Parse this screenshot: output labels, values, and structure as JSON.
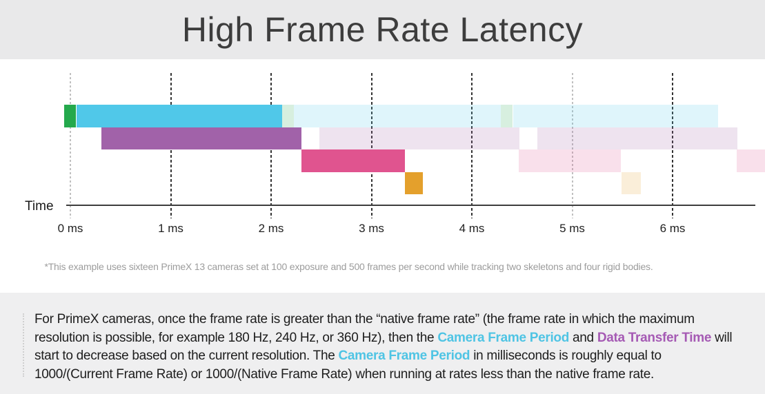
{
  "header": {
    "title": "High Frame Rate Latency",
    "bg": "#e9e9ea"
  },
  "chart": {
    "time_label": "Time",
    "footnote": "*This example uses sixteen PrimeX 13 cameras set at 100 exposure and 500 frames per second while tracking two skeletons and four rigid bodies."
  },
  "chart_data": {
    "type": "bar",
    "subtype": "gantt-latency-timeline",
    "title": "High Frame Rate Latency",
    "xlabel": "Time",
    "x_unit": "ms",
    "xlim": [
      -0.1,
      6.92
    ],
    "grid": true,
    "x_ticks": [
      {
        "value": 0,
        "label": "0 ms",
        "light": true
      },
      {
        "value": 1,
        "label": "1 ms",
        "light": false
      },
      {
        "value": 2,
        "label": "2 ms",
        "light": false
      },
      {
        "value": 3,
        "label": "3 ms",
        "light": false
      },
      {
        "value": 4,
        "label": "4 ms",
        "light": false
      },
      {
        "value": 5,
        "label": "5 ms",
        "light": true
      },
      {
        "value": 6,
        "label": "6 ms",
        "light": false
      }
    ],
    "colors": {
      "green": "#24a94c",
      "cyan": "#50c8e9",
      "purple": "#a162a9",
      "pink": "#e0548f",
      "orange": "#e4a02c",
      "gridline_dark": "#333333",
      "gridline_light": "#c0c0c0",
      "axis": "#3d3d3d",
      "accent_text_cyan": "#4fc4e4",
      "accent_text_purple": "#a55ab4"
    },
    "faded_opacity": 0.18,
    "frame_period_ms": 2.17,
    "rows": [
      {
        "name": "row-1-camera-frame",
        "segments": [
          {
            "color": "green",
            "start": -0.06,
            "end": 0.06,
            "faded": false
          },
          {
            "color": "cyan",
            "start": 0.06,
            "end": 2.11,
            "faded": false
          },
          {
            "color": "green",
            "start": 2.11,
            "end": 2.23,
            "faded": true
          },
          {
            "color": "cyan",
            "start": 2.23,
            "end": 4.29,
            "faded": true
          },
          {
            "color": "green",
            "start": 4.29,
            "end": 4.41,
            "faded": true
          },
          {
            "color": "cyan",
            "start": 4.41,
            "end": 6.45,
            "faded": true
          }
        ]
      },
      {
        "name": "row-2-data-transfer",
        "segments": [
          {
            "color": "purple",
            "start": 0.31,
            "end": 2.3,
            "faded": false
          },
          {
            "color": "purple",
            "start": 2.48,
            "end": 4.47,
            "faded": true
          },
          {
            "color": "purple",
            "start": 4.65,
            "end": 6.64,
            "faded": true
          }
        ]
      },
      {
        "name": "row-3-processing",
        "segments": [
          {
            "color": "pink",
            "start": 2.3,
            "end": 3.33,
            "faded": false
          },
          {
            "color": "pink",
            "start": 4.47,
            "end": 5.49,
            "faded": true
          },
          {
            "color": "pink",
            "start": 6.64,
            "end": 7.2,
            "faded": true
          }
        ]
      },
      {
        "name": "row-4-output",
        "segments": [
          {
            "color": "orange",
            "start": 3.33,
            "end": 3.51,
            "faded": false
          },
          {
            "color": "orange",
            "start": 5.49,
            "end": 5.68,
            "faded": true
          }
        ]
      }
    ]
  },
  "info": {
    "bg": "#efeff0",
    "segments": [
      {
        "text": "For PrimeX cameras, once the frame rate is greater than the “native frame rate” (the frame rate in which the maximum resolution is possible, for example 180 Hz, 240 Hz, or 360 Hz), then the ",
        "style": "normal"
      },
      {
        "text": "Camera Frame Period",
        "style": "cyan"
      },
      {
        "text": " and ",
        "style": "normal"
      },
      {
        "text": "Data Transfer Time",
        "style": "purple"
      },
      {
        "text": " will start to decrease based on the current resolution. The ",
        "style": "normal"
      },
      {
        "text": "Camera Frame Period",
        "style": "cyan"
      },
      {
        "text": " in milliseconds is roughly equal to 1000/(Current Frame Rate) or 1000/(Native Frame Rate) when running at rates less than the native frame rate.",
        "style": "normal"
      }
    ]
  }
}
